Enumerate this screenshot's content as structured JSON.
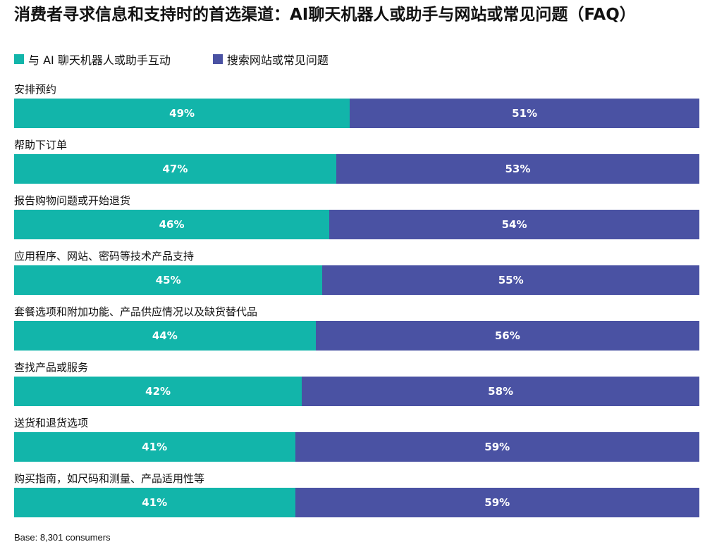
{
  "chart_data": {
    "type": "bar",
    "orientation": "horizontal",
    "stacked": "100%",
    "title": "消费者寻求信息和支持时的首选渠道：AI聊天机器人或助手与网站或常见问题（FAQ）",
    "legend_position": "top-left",
    "categories": [
      "安排预约",
      "帮助下订单",
      "报告购物问题或开始退货",
      "应用程序、网站、密码等技术产品支持",
      "套餐选项和附加功能、产品供应情况以及缺货替代品",
      "查找产品或服务",
      "送货和退货选项",
      "购买指南，如尺码和测量、产品适用性等"
    ],
    "series": [
      {
        "name": "与 AI 聊天机器人或助手互动",
        "color": "#12b5aa",
        "values": [
          49,
          47,
          46,
          45,
          44,
          42,
          41,
          41
        ]
      },
      {
        "name": "搜索网站或常见问题",
        "color": "#4a52a3",
        "values": [
          51,
          53,
          54,
          55,
          56,
          58,
          59,
          59
        ]
      }
    ],
    "value_format": "{v}%",
    "grid": false
  },
  "footer": {
    "base": "Base: 8,301 consumers"
  }
}
